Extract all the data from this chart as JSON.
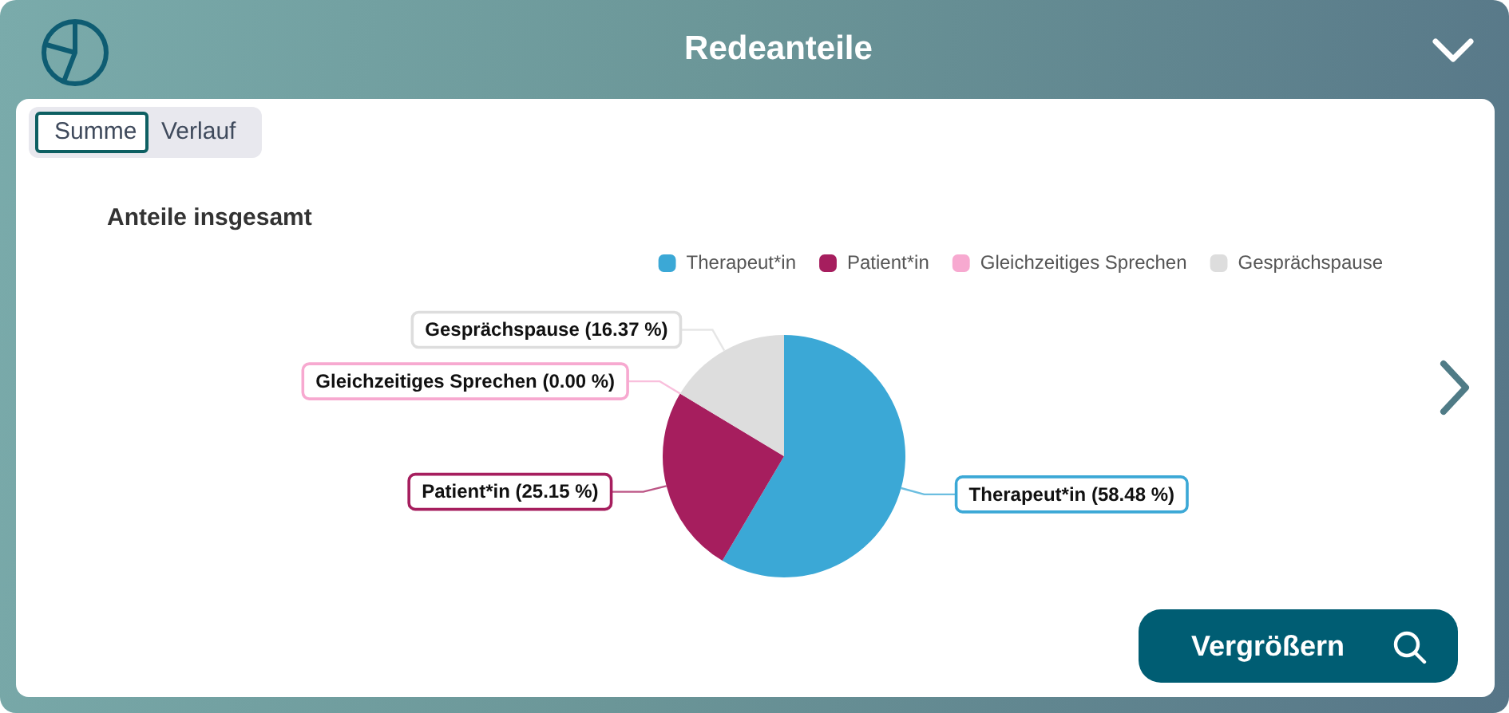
{
  "chart_data": {
    "type": "pie",
    "title": "Redeanteile",
    "subtitle": "Anteile insgesamt",
    "categories": [
      "Therapeut*in",
      "Patient*in",
      "Gleichzeitiges Sprechen",
      "Gesprächspause"
    ],
    "values": [
      58.48,
      25.15,
      0.0,
      16.37
    ],
    "colors": [
      "#3ba8d6",
      "#a61e5e",
      "#f7a9d0",
      "#dddddd"
    ],
    "value_labels": [
      "Therapeut*in (58.48 %)",
      "Patient*in (25.15 %)",
      "Gleichzeitiges Sprechen (0.00 %)",
      "Gesprächspause (16.37 %)"
    ],
    "legend": "top right",
    "annotations": [
      "Summe",
      "Verlauf",
      "Vergrößern"
    ]
  }
}
